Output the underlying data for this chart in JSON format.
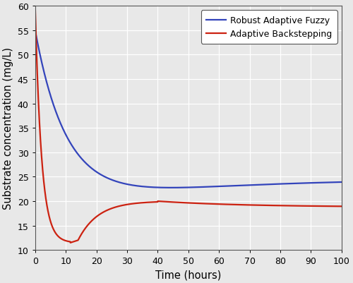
{
  "xlabel": "Time (hours)",
  "ylabel": "Substrate concentration (mg/L)",
  "xlim": [
    0,
    100
  ],
  "ylim": [
    10,
    60
  ],
  "xticks": [
    0,
    10,
    20,
    30,
    40,
    50,
    60,
    70,
    80,
    90,
    100
  ],
  "yticks": [
    10,
    15,
    20,
    25,
    30,
    35,
    40,
    45,
    50,
    55,
    60
  ],
  "blue_label": "Robust Adaptive Fuzzy",
  "red_label": "Adaptive Backstepping",
  "blue_color": "#3344bb",
  "red_color": "#cc2211",
  "background_color": "#e8e8e8",
  "grid_color": "#ffffff",
  "linewidth": 1.6
}
